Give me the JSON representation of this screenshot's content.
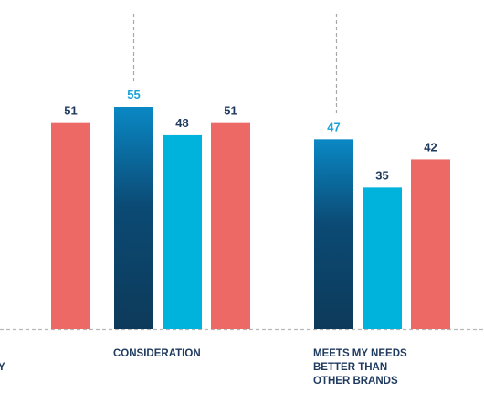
{
  "chart_data": {
    "type": "bar",
    "categories": [
      "",
      "CONSIDERATION",
      "MEETS MY NEEDS BETTER THAN OTHER BRANDS"
    ],
    "category_label_lines": [
      [
        "Y"
      ],
      [
        "CONSIDERATION"
      ],
      [
        "MEETS MY NEEDS",
        "BETTER THAN",
        "OTHER BRANDS"
      ]
    ],
    "series": [
      {
        "color": "#0b4a74",
        "label_color": "#1aa3d9",
        "gradient": true,
        "values": [
          null,
          55,
          47
        ]
      },
      {
        "color": "#00b3dd",
        "label_color": "#1f3a5f",
        "gradient": false,
        "values": [
          null,
          48,
          35
        ]
      },
      {
        "color": "#ec6966",
        "label_color": "#1f3a5f",
        "gradient": false,
        "values": [
          51,
          51,
          42
        ]
      }
    ],
    "ylim": [
      0,
      60
    ],
    "grid": false,
    "legend": "none"
  }
}
